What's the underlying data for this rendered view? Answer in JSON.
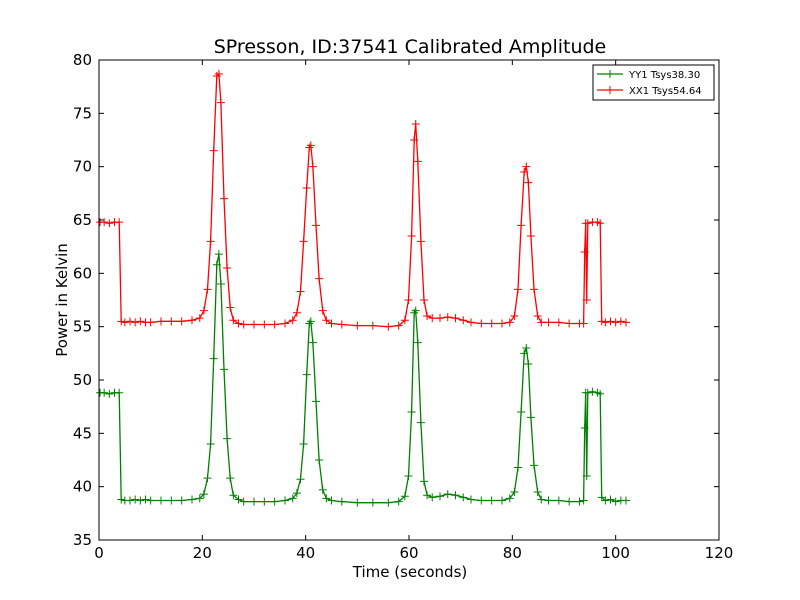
{
  "chart_data": {
    "type": "line",
    "title": "SPresson, ID:37541 Calibrated Amplitude",
    "xlabel": "Time (seconds)",
    "ylabel": "Power in Kelvin",
    "xlim": [
      0,
      120
    ],
    "ylim": [
      35,
      80
    ],
    "xticks": [
      0,
      20,
      40,
      60,
      80,
      100,
      120
    ],
    "yticks": [
      35,
      40,
      45,
      50,
      55,
      60,
      65,
      70,
      75,
      80
    ],
    "grid": false,
    "legend_position": "top-right",
    "marker": "+",
    "series": [
      {
        "name": "YY1 Tsys38.30",
        "color": "#008000",
        "points": [
          [
            0.2,
            48.8
          ],
          [
            1,
            48.8
          ],
          [
            2,
            48.7
          ],
          [
            3,
            48.8
          ],
          [
            3.9,
            48.8
          ],
          [
            4.3,
            38.8
          ],
          [
            5,
            38.7
          ],
          [
            6,
            38.7
          ],
          [
            7,
            38.8
          ],
          [
            8,
            38.7
          ],
          [
            9,
            38.8
          ],
          [
            10,
            38.7
          ],
          [
            12,
            38.7
          ],
          [
            14,
            38.7
          ],
          [
            16,
            38.7
          ],
          [
            18,
            38.8
          ],
          [
            19.5,
            38.9
          ],
          [
            20.3,
            39.3
          ],
          [
            21,
            40.8
          ],
          [
            21.6,
            44
          ],
          [
            22.2,
            52
          ],
          [
            22.8,
            60.8
          ],
          [
            23.2,
            61.8
          ],
          [
            23.6,
            59
          ],
          [
            24.2,
            51
          ],
          [
            24.8,
            44.5
          ],
          [
            25.4,
            40.8
          ],
          [
            26,
            39.2
          ],
          [
            27,
            38.8
          ],
          [
            28,
            38.6
          ],
          [
            30,
            38.6
          ],
          [
            32,
            38.6
          ],
          [
            34,
            38.6
          ],
          [
            36,
            38.7
          ],
          [
            37.5,
            38.9
          ],
          [
            38.3,
            39.4
          ],
          [
            39,
            40.7
          ],
          [
            39.6,
            44
          ],
          [
            40.2,
            50.5
          ],
          [
            40.7,
            55.3
          ],
          [
            41,
            55.5
          ],
          [
            41.4,
            53.5
          ],
          [
            42,
            48
          ],
          [
            42.6,
            42.5
          ],
          [
            43.3,
            39.7
          ],
          [
            44,
            38.9
          ],
          [
            45,
            38.7
          ],
          [
            47,
            38.6
          ],
          [
            50,
            38.5
          ],
          [
            53,
            38.5
          ],
          [
            56,
            38.5
          ],
          [
            58,
            38.6
          ],
          [
            59.2,
            39.1
          ],
          [
            59.9,
            41
          ],
          [
            60.5,
            47
          ],
          [
            61,
            56.3
          ],
          [
            61.3,
            56.5
          ],
          [
            61.7,
            53.5
          ],
          [
            62.3,
            46
          ],
          [
            62.9,
            40.5
          ],
          [
            63.5,
            39.2
          ],
          [
            64.5,
            39
          ],
          [
            66,
            39.1
          ],
          [
            67.5,
            39.3
          ],
          [
            69,
            39.2
          ],
          [
            70.5,
            39
          ],
          [
            72,
            38.8
          ],
          [
            74,
            38.7
          ],
          [
            76,
            38.7
          ],
          [
            78,
            38.7
          ],
          [
            79.5,
            38.9
          ],
          [
            80.4,
            39.5
          ],
          [
            81.1,
            41.8
          ],
          [
            81.7,
            47
          ],
          [
            82.3,
            52.5
          ],
          [
            82.7,
            53
          ],
          [
            83.1,
            51.5
          ],
          [
            83.6,
            46.5
          ],
          [
            84.2,
            42
          ],
          [
            84.9,
            39.5
          ],
          [
            85.6,
            38.8
          ],
          [
            87,
            38.7
          ],
          [
            89,
            38.7
          ],
          [
            91,
            38.6
          ],
          [
            93,
            38.6
          ],
          [
            93.8,
            38.7
          ],
          [
            94,
            45.5
          ],
          [
            94.2,
            48.8
          ],
          [
            94.4,
            41
          ],
          [
            94.6,
            48.8
          ],
          [
            95.5,
            48.9
          ],
          [
            96.5,
            48.8
          ],
          [
            97,
            48.7
          ],
          [
            97.3,
            39
          ],
          [
            98,
            38.7
          ],
          [
            99,
            38.8
          ],
          [
            100,
            38.6
          ],
          [
            101,
            38.7
          ],
          [
            102,
            38.7
          ]
        ]
      },
      {
        "name": "XX1 Tsys54.64",
        "color": "#ff0000",
        "points": [
          [
            0.2,
            64.8
          ],
          [
            1,
            64.8
          ],
          [
            2,
            64.7
          ],
          [
            3,
            64.8
          ],
          [
            3.9,
            64.8
          ],
          [
            4.3,
            55.5
          ],
          [
            5,
            55.4
          ],
          [
            6,
            55.5
          ],
          [
            7,
            55.4
          ],
          [
            8,
            55.5
          ],
          [
            9,
            55.4
          ],
          [
            10,
            55.4
          ],
          [
            12,
            55.5
          ],
          [
            14,
            55.5
          ],
          [
            16,
            55.5
          ],
          [
            18,
            55.6
          ],
          [
            19.5,
            55.8
          ],
          [
            20.3,
            56.5
          ],
          [
            21,
            58.5
          ],
          [
            21.6,
            63
          ],
          [
            22.2,
            71.5
          ],
          [
            22.8,
            78.5
          ],
          [
            23.2,
            78.7
          ],
          [
            23.6,
            76
          ],
          [
            24.2,
            67
          ],
          [
            24.8,
            60.5
          ],
          [
            25.4,
            56.8
          ],
          [
            26,
            55.6
          ],
          [
            27,
            55.3
          ],
          [
            28,
            55.2
          ],
          [
            30,
            55.2
          ],
          [
            32,
            55.2
          ],
          [
            34,
            55.2
          ],
          [
            36,
            55.3
          ],
          [
            37.5,
            55.6
          ],
          [
            38.3,
            56.3
          ],
          [
            39,
            58.3
          ],
          [
            39.6,
            63
          ],
          [
            40.2,
            68
          ],
          [
            40.7,
            71.8
          ],
          [
            41,
            72
          ],
          [
            41.4,
            70
          ],
          [
            42,
            64.5
          ],
          [
            42.6,
            59.5
          ],
          [
            43.3,
            56.5
          ],
          [
            44,
            55.6
          ],
          [
            45,
            55.3
          ],
          [
            47,
            55.2
          ],
          [
            50,
            55.1
          ],
          [
            53,
            55.1
          ],
          [
            56,
            55
          ],
          [
            58,
            55.1
          ],
          [
            59.2,
            55.6
          ],
          [
            59.9,
            57.5
          ],
          [
            60.5,
            63.5
          ],
          [
            61,
            72.5
          ],
          [
            61.3,
            74
          ],
          [
            61.7,
            70.5
          ],
          [
            62.3,
            63
          ],
          [
            62.9,
            57.5
          ],
          [
            63.5,
            56
          ],
          [
            64.5,
            55.8
          ],
          [
            66,
            55.8
          ],
          [
            67.5,
            55.9
          ],
          [
            69,
            55.8
          ],
          [
            70.5,
            55.6
          ],
          [
            72,
            55.4
          ],
          [
            74,
            55.3
          ],
          [
            76,
            55.3
          ],
          [
            78,
            55.3
          ],
          [
            79.5,
            55.4
          ],
          [
            80.4,
            56
          ],
          [
            81.1,
            58.5
          ],
          [
            81.7,
            64.5
          ],
          [
            82.3,
            69.5
          ],
          [
            82.7,
            70
          ],
          [
            83.1,
            68.5
          ],
          [
            83.6,
            63.5
          ],
          [
            84.2,
            58.5
          ],
          [
            84.9,
            56
          ],
          [
            85.6,
            55.4
          ],
          [
            87,
            55.4
          ],
          [
            89,
            55.4
          ],
          [
            91,
            55.3
          ],
          [
            93,
            55.3
          ],
          [
            93.8,
            55.3
          ],
          [
            94,
            62
          ],
          [
            94.2,
            64.7
          ],
          [
            94.4,
            57.5
          ],
          [
            94.6,
            64.7
          ],
          [
            95.5,
            64.8
          ],
          [
            96.5,
            64.8
          ],
          [
            97,
            64.7
          ],
          [
            97.3,
            55.5
          ],
          [
            98,
            55.4
          ],
          [
            99,
            55.5
          ],
          [
            100,
            55.4
          ],
          [
            101,
            55.5
          ],
          [
            102,
            55.4
          ]
        ]
      }
    ]
  }
}
